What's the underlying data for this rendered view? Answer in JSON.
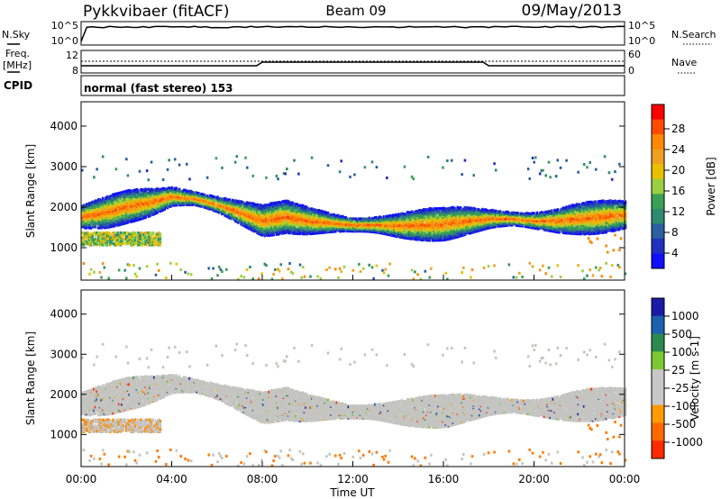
{
  "header": {
    "station": "Pykkvibaer (fitACF)",
    "beam": "Beam 09",
    "date": "09/May/2013"
  },
  "noise_panel": {
    "left_label": "N.Sky",
    "right_label": "N.Search",
    "left_ticks": [
      "10^5",
      "10^0"
    ],
    "right_ticks": [
      "10^5",
      "10^0"
    ]
  },
  "freq_panel": {
    "left_label_top": "Freq.",
    "left_label_bottom": "[MHz]",
    "right_label": "Nave",
    "left_ticks": [
      "12",
      "8"
    ],
    "right_ticks": [
      "60",
      "0"
    ]
  },
  "cpid": {
    "label": "CPID",
    "text": "normal (fast stereo) 153"
  },
  "x_axis": {
    "label": "Time UT",
    "ticks": [
      "00:00",
      "04:00",
      "08:00",
      "12:00",
      "16:00",
      "20:00",
      "00:00"
    ]
  },
  "power_colorbar": {
    "label": "Power [dB]",
    "ticks": [
      "28",
      "24",
      "20",
      "16",
      "12",
      "8",
      "4"
    ],
    "colors": [
      "#ff0000",
      "#ff4a00",
      "#ff8800",
      "#f0a020",
      "#e8c000",
      "#9ad040",
      "#3aa055",
      "#2e8a70",
      "#2a5fa0",
      "#2030c0",
      "#1010ff"
    ]
  },
  "velocity_colorbar": {
    "label": "Velocity [m s-1]",
    "ticks": [
      "1000",
      "500",
      "100",
      "25",
      "-25",
      "-100",
      "-500",
      "-1000"
    ],
    "colors": [
      "#1a1aa8",
      "#1d60b0",
      "#2a8a50",
      "#7cc830",
      "#c8c8c8",
      "#c8c8c8",
      "#ff9a00",
      "#ff6a00",
      "#ff2a00"
    ]
  },
  "chart_data": [
    {
      "type": "heatmap",
      "title": "Power",
      "ylabel": "Slant Range [km]",
      "xlabel": "Time UT",
      "ylim": [
        200,
        4600
      ],
      "y_ticks": [
        1000,
        2000,
        3000,
        4000
      ],
      "x_range_hours": [
        0,
        24
      ],
      "colorbar_label": "Power [dB]",
      "colorbar_range": [
        0,
        32
      ],
      "band_center_range_km": [
        {
          "t": 0,
          "r": 1800
        },
        {
          "t": 1,
          "r": 1900
        },
        {
          "t": 2,
          "r": 2050
        },
        {
          "t": 3,
          "r": 2150
        },
        {
          "t": 4,
          "r": 2300
        },
        {
          "t": 5,
          "r": 2250
        },
        {
          "t": 6,
          "r": 2100
        },
        {
          "t": 7,
          "r": 1900
        },
        {
          "t": 8,
          "r": 1700
        },
        {
          "t": 9,
          "r": 1800
        },
        {
          "t": 10,
          "r": 1700
        },
        {
          "t": 11,
          "r": 1650
        },
        {
          "t": 12,
          "r": 1600
        },
        {
          "t": 13,
          "r": 1600
        },
        {
          "t": 14,
          "r": 1580
        },
        {
          "t": 15,
          "r": 1600
        },
        {
          "t": 16,
          "r": 1620
        },
        {
          "t": 17,
          "r": 1700
        },
        {
          "t": 18,
          "r": 1750
        },
        {
          "t": 19,
          "r": 1750
        },
        {
          "t": 20,
          "r": 1700
        },
        {
          "t": 21,
          "r": 1700
        },
        {
          "t": 22,
          "r": 1750
        },
        {
          "t": 23,
          "r": 1800
        },
        {
          "t": 24,
          "r": 1850
        }
      ],
      "lower_band_range_km": [
        {
          "t": 0,
          "r": 1200
        },
        {
          "t": 1,
          "r": 1200
        },
        {
          "t": 2,
          "r": 1250
        },
        {
          "t": 3,
          "r": 1350
        }
      ],
      "peak_power_db": 28
    },
    {
      "type": "heatmap",
      "title": "Velocity",
      "ylabel": "Slant Range [km]",
      "xlabel": "Time UT",
      "ylim": [
        200,
        4600
      ],
      "y_ticks": [
        1000,
        2000,
        3000,
        4000
      ],
      "x_range_hours": [
        0,
        24
      ],
      "colorbar_label": "Velocity [m s-1]",
      "colorbar_range": [
        -1000,
        1000
      ],
      "dominant_velocity_ms": 0
    }
  ]
}
